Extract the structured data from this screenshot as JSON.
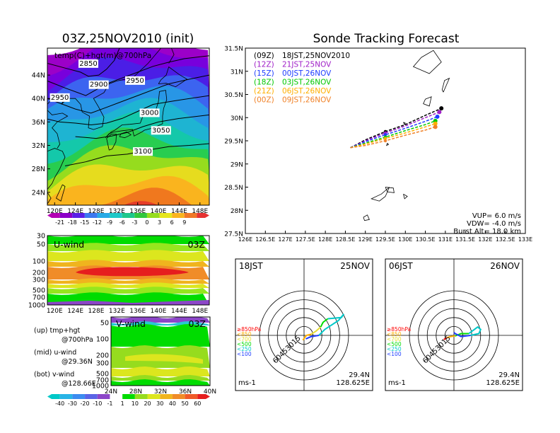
{
  "left": {
    "main_title": "03Z,25NOV2010 (init)",
    "map": {
      "label": "temp(C)+hgt(m)@700hPa",
      "lat_ticks": [
        "44N",
        "40N",
        "36N",
        "32N",
        "28N",
        "24N"
      ],
      "lon_ticks": [
        "120E",
        "124E",
        "128E",
        "132E",
        "136E",
        "140E",
        "144E",
        "148E"
      ],
      "contour_labels": [
        "2850",
        "2900",
        "2950",
        "2950",
        "3000",
        "3050",
        "3100"
      ]
    },
    "temp_colorbar": [
      "-21",
      "-18",
      "-15",
      "-12",
      "-9",
      "-6",
      "-3",
      "0",
      "3",
      "6",
      "9"
    ],
    "u_panel": {
      "label": "U-wind",
      "time": "03Z",
      "p_ticks": [
        "30",
        "50",
        "100",
        "200",
        "300",
        "500",
        "700",
        "1000"
      ],
      "lon_ticks": [
        "120E",
        "124E",
        "128E",
        "132E",
        "136E",
        "140E",
        "144E",
        "148E"
      ]
    },
    "v_panel": {
      "label": "V-wind",
      "time": "03Z",
      "p_ticks": [
        "50",
        "100",
        "200",
        "300",
        "500",
        "700",
        "1000"
      ],
      "lat_ticks": [
        "24N",
        "28N",
        "32N",
        "36N",
        "40N"
      ]
    },
    "legend": [
      {
        "line1": "(up) tmp+hgt",
        "line2": "@700hPa"
      },
      {
        "line1": "(mid) u-wind",
        "line2": "@29.36N"
      },
      {
        "line1": "(bot) v-wind",
        "line2": "@128.66E"
      }
    ],
    "wind_colorbar": [
      "-40",
      "-30",
      "-20",
      "-10",
      "-1",
      "1",
      "10",
      "20",
      "30",
      "40",
      "50",
      "60"
    ]
  },
  "right": {
    "title": "Sonde Tracking Forecast",
    "track": {
      "lat_ticks": [
        "31.5N",
        "31N",
        "30.5N",
        "30N",
        "29.5N",
        "29N",
        "28.5N",
        "28N",
        "27.5N"
      ],
      "lon_ticks": [
        "126E",
        "126.5E",
        "127E",
        "127.5E",
        "128E",
        "128.5E",
        "129E",
        "129.5E",
        "130E",
        "130.5E",
        "131E",
        "131.5E",
        "132E",
        "132.5E",
        "133E"
      ],
      "launches": [
        {
          "code": "(09Z)",
          "time": "18JST,25NOV2010",
          "color": "#000000"
        },
        {
          "code": "(12Z)",
          "time": "21JST,25NOV",
          "color": "#a020c8"
        },
        {
          "code": "(15Z)",
          "time": "00JST,26NOV",
          "color": "#1e3cff"
        },
        {
          "code": "(18Z)",
          "time": "03JST,26NOV",
          "color": "#00c800"
        },
        {
          "code": "(21Z)",
          "time": "06JST,26NOV",
          "color": "#ffaf00"
        },
        {
          "code": "(00Z)",
          "time": "09JST,26NOV",
          "color": "#f08228"
        }
      ],
      "params": [
        "VUP= 6.0 m/s",
        "VDW= -4.0 m/s",
        "Burst Alt= 18.0 km"
      ]
    },
    "hodographs": [
      {
        "left_label": "18JST",
        "right_label": "25NOV",
        "lat": "29.4N",
        "lon": "128.625E"
      },
      {
        "left_label": "06JST",
        "right_label": "26NOV",
        "lat": "29.4N",
        "lon": "128.625E"
      }
    ],
    "ring_labels": [
      "15",
      "30",
      "45",
      "60"
    ],
    "level_legend": [
      {
        "text": "≥850hPa",
        "color": "#ff0000"
      },
      {
        "text": "<850",
        "color": "#ffaf00"
      },
      {
        "text": "<700",
        "color": "#e6dc32"
      },
      {
        "text": "<500",
        "color": "#00dc00"
      },
      {
        "text": "<250",
        "color": "#00c8c8"
      },
      {
        "text": "<100",
        "color": "#1e3cff"
      }
    ],
    "unit": "ms-1"
  },
  "chart_data": [
    {
      "type": "line",
      "title": "Sonde Tracking Forecast",
      "xlabel": "",
      "ylabel": "",
      "xlim": [
        126,
        133
      ],
      "ylim": [
        27.5,
        31.5
      ],
      "grid": false,
      "legend_placement": "top-left",
      "series": [
        {
          "name": "(09Z) 18JST,25NOV2010",
          "color": "#000000",
          "x": [
            128.625,
            129.0,
            129.5,
            130.0,
            130.5,
            130.9
          ],
          "y": [
            29.35,
            29.52,
            29.7,
            29.85,
            30.05,
            30.2
          ]
        },
        {
          "name": "(12Z) 21JST,25NOV",
          "color": "#a020c8",
          "x": [
            128.625,
            129.0,
            129.5,
            130.0,
            130.5,
            130.85
          ],
          "y": [
            29.35,
            29.5,
            29.67,
            29.82,
            30.0,
            30.12
          ]
        },
        {
          "name": "(15Z) 00JST,26NOV",
          "color": "#1e3cff",
          "x": [
            128.625,
            129.0,
            129.5,
            130.0,
            130.5,
            130.8
          ],
          "y": [
            29.35,
            29.48,
            29.63,
            29.77,
            29.92,
            30.02
          ]
        },
        {
          "name": "(18Z) 03JST,26NOV",
          "color": "#00c800",
          "x": [
            128.625,
            129.0,
            129.5,
            130.0,
            130.5,
            130.75
          ],
          "y": [
            29.35,
            29.45,
            29.58,
            29.72,
            29.85,
            29.93
          ]
        },
        {
          "name": "(21Z) 06JST,26NOV",
          "color": "#ffaf00",
          "x": [
            128.625,
            129.0,
            129.5,
            130.0,
            130.5,
            130.75
          ],
          "y": [
            29.35,
            29.43,
            29.55,
            29.67,
            29.8,
            29.87
          ]
        },
        {
          "name": "(00Z) 09JST,26NOV",
          "color": "#f08228",
          "x": [
            128.625,
            129.0,
            129.5,
            130.0,
            130.5,
            130.75
          ],
          "y": [
            29.35,
            29.4,
            29.5,
            29.62,
            29.73,
            29.8
          ]
        }
      ]
    },
    {
      "type": "line",
      "title": "18JST 25NOV",
      "xlim": [
        -75,
        75
      ],
      "ylim": [
        -75,
        75
      ],
      "series": [
        {
          "name": "<850",
          "color": "#ffaf00",
          "x": [
            -2,
            4,
            12
          ],
          "y": [
            -8,
            0,
            2
          ]
        },
        {
          "name": "<700",
          "color": "#e6dc32",
          "x": [
            12,
            20,
            28
          ],
          "y": [
            2,
            7,
            14
          ]
        },
        {
          "name": "<500",
          "color": "#00dc00",
          "x": [
            28,
            32,
            40
          ],
          "y": [
            14,
            22,
            28
          ]
        },
        {
          "name": "<250",
          "color": "#00c8c8",
          "x": [
            40,
            63,
            67,
            58,
            35,
            25
          ],
          "y": [
            28,
            30,
            36,
            25,
            10,
            0
          ]
        },
        {
          "name": "<100",
          "color": "#1e3cff",
          "x": [
            25,
            12,
            3
          ],
          "y": [
            0,
            -2,
            -6
          ]
        }
      ]
    },
    {
      "type": "line",
      "title": "06JST 26NOV",
      "xlim": [
        -75,
        75
      ],
      "ylim": [
        -75,
        75
      ],
      "series": [
        {
          "name": "≥850hPa",
          "color": "#ff0000",
          "x": [
            -17,
            -12
          ],
          "y": [
            -7,
            -4
          ]
        },
        {
          "name": "<850",
          "color": "#ffaf00",
          "x": [
            -12,
            -6,
            2
          ],
          "y": [
            -4,
            -2,
            -1
          ]
        },
        {
          "name": "<500",
          "color": "#00dc00",
          "x": [
            2,
            12,
            25
          ],
          "y": [
            -1,
            3,
            3
          ]
        },
        {
          "name": "<250",
          "color": "#00c8c8",
          "x": [
            25,
            40,
            45,
            42,
            28
          ],
          "y": [
            3,
            14,
            10,
            3,
            0
          ]
        },
        {
          "name": "<100",
          "color": "#1e3cff",
          "x": [
            28,
            12,
            2,
            0
          ],
          "y": [
            0,
            -2,
            3,
            5
          ]
        }
      ]
    }
  ]
}
